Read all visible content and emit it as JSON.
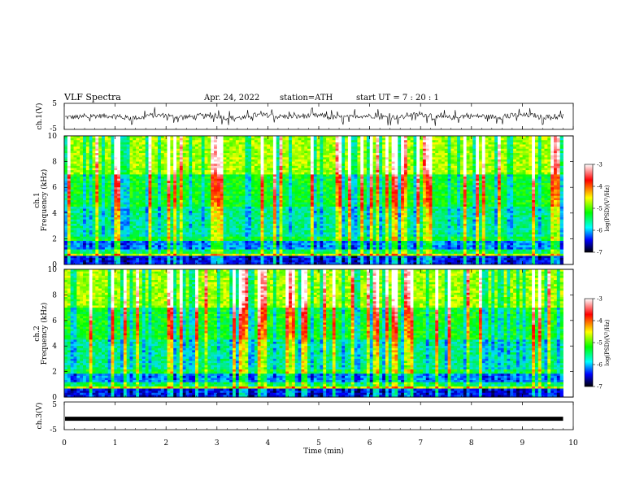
{
  "header": {
    "title": "VLF  Spectra",
    "date": "Apr. 24, 2022",
    "station": "station=ATH",
    "start": "start  UT  =   7  : 20 : 1"
  },
  "chart_data": [
    {
      "type": "line",
      "panel": "ch1-waveform",
      "ylabel": "ch.1(V)",
      "ylim": [
        -5,
        5
      ],
      "yticks": [
        "5",
        "-5"
      ],
      "x_range_min": [
        0,
        9.8
      ],
      "series": [
        {
          "values": [
            -0.3,
            0.2,
            -0.5,
            0.4,
            -0.2,
            0.1,
            -0.6,
            0.5,
            -0.1,
            0.3,
            -0.4,
            0.2,
            -0.3,
            0.6,
            -0.5,
            0.1,
            -0.2,
            0.4,
            -0.3,
            0.2
          ]
        }
      ]
    },
    {
      "type": "heatmap",
      "panel": "ch1-spectrogram",
      "ylabel": "ch.1\nFrequency (kHz)",
      "ylim": [
        0,
        10
      ],
      "yticks": [
        "10",
        "8",
        "6",
        "4",
        "2",
        "0"
      ],
      "x_range_min": [
        0,
        9.8
      ],
      "colorbar": {
        "label": "log(PSD)(V²/Hz)",
        "range": [
          -7,
          -3
        ],
        "ticks": [
          "-3",
          "-4",
          "-5",
          "-6",
          "-7"
        ]
      }
    },
    {
      "type": "heatmap",
      "panel": "ch2-spectrogram",
      "ylabel": "ch.2\nFrequency (kHz)",
      "ylim": [
        0,
        10
      ],
      "yticks": [
        "10",
        "8",
        "6",
        "4",
        "2",
        "0"
      ],
      "x_range_min": [
        0,
        9.8
      ],
      "colorbar": {
        "label": "log(PSD)(V²/Hz)",
        "range": [
          -7,
          -3
        ],
        "ticks": [
          "-3",
          "-4",
          "-5",
          "-6",
          "-7"
        ]
      }
    },
    {
      "type": "line",
      "panel": "ch3-waveform",
      "ylabel": "ch.3(V)",
      "ylim": [
        -5,
        5
      ],
      "yticks": [
        "5",
        "-5"
      ],
      "x_range_min": [
        0,
        9.8
      ],
      "series": [
        {
          "values": [
            -1.2,
            -1.2,
            -1.2,
            -1.2,
            -1.2,
            -1.2,
            -1.2,
            -1.2,
            -1.2,
            -1.2
          ]
        }
      ]
    }
  ],
  "xaxis": {
    "label": "Time  (min)",
    "ticks": [
      "0",
      "1",
      "2",
      "3",
      "4",
      "5",
      "6",
      "7",
      "8",
      "9",
      "10"
    ]
  },
  "colors": {
    "colormap": [
      "#ffffff",
      "#ff0000",
      "#ffff00",
      "#00ff00",
      "#00ffff",
      "#0000ff",
      "#000000"
    ]
  }
}
